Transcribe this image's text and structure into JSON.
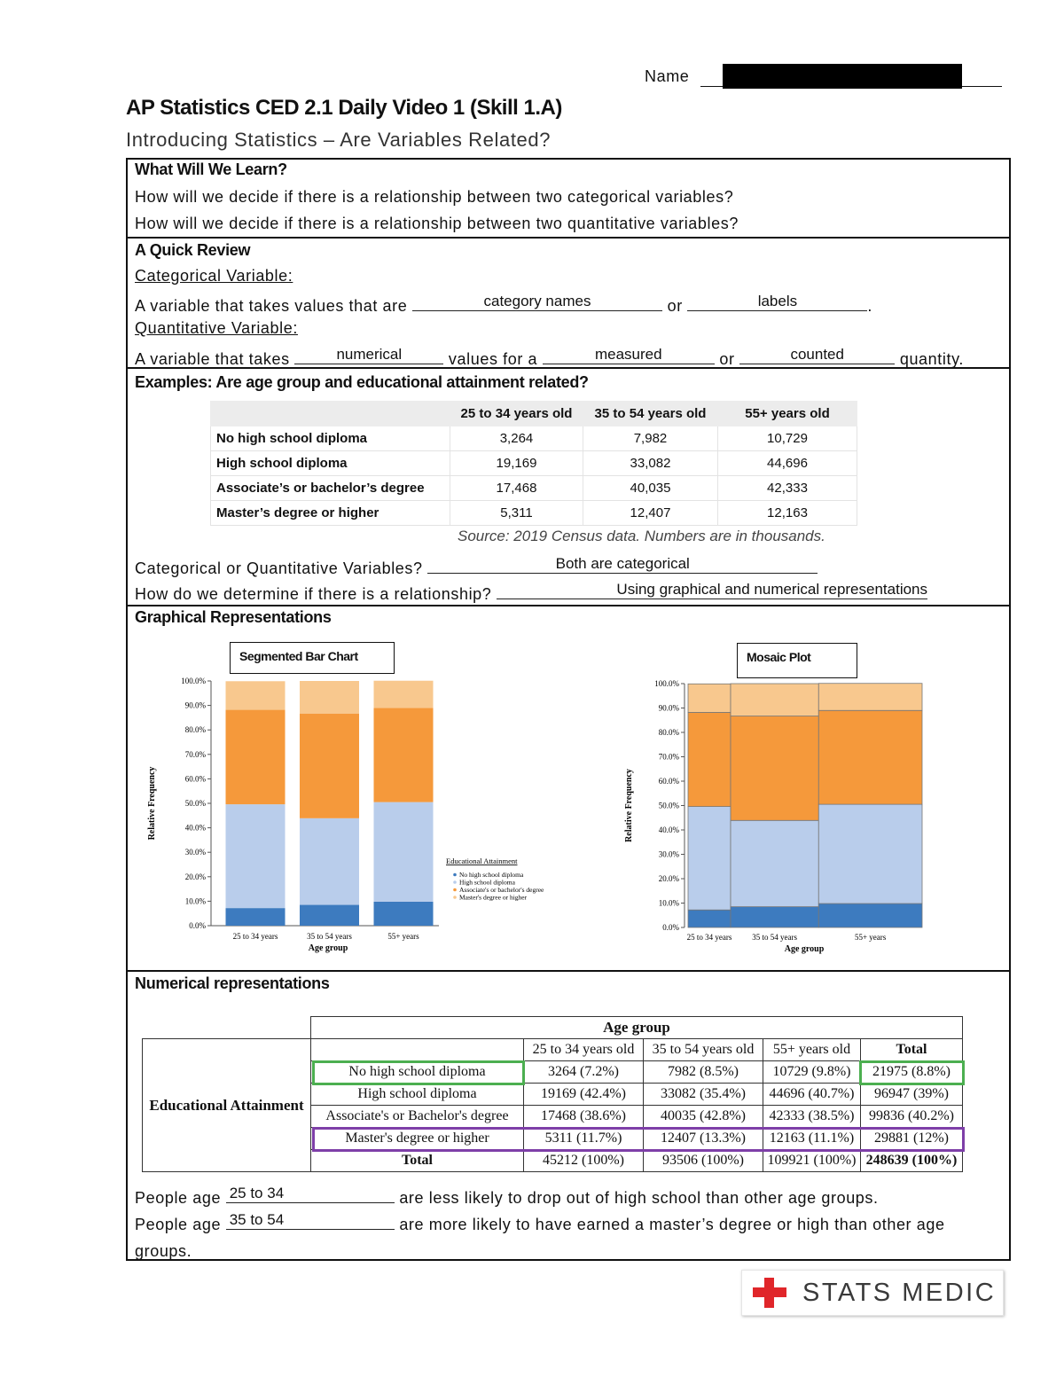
{
  "header": {
    "name_label": "Name",
    "title": "AP Statistics CED 2.1 Daily Video 1 (Skill 1.A)",
    "subtitle": "Introducing Statistics – Are Variables Related?"
  },
  "learn": {
    "heading": "What Will We Learn?",
    "questions": [
      "How will we decide if there is a relationship between two categorical variables?",
      "How will we decide if there is a relationship between two quantitative variables?"
    ]
  },
  "review": {
    "heading": "A Quick Review",
    "categorical": {
      "term": "Categorical Variable:",
      "parts": [
        "A variable that takes values that are",
        "or",
        "."
      ],
      "answers": [
        "category names",
        "labels"
      ]
    },
    "quantitative": {
      "term": "Quantitative Variable:",
      "parts": [
        "A variable that takes",
        "values for a",
        "or",
        "quantity."
      ],
      "answers": [
        "numerical",
        "measured",
        "counted"
      ]
    }
  },
  "examples": {
    "heading": "Examples: Are age group and educational attainment related?",
    "table": {
      "columns": [
        "25 to 34 years old",
        "35 to 54 years old",
        "55+ years old"
      ],
      "rows": [
        {
          "label": "No high school diploma",
          "cells": [
            "3,264",
            "7,982",
            "10,729"
          ]
        },
        {
          "label": "High school diploma",
          "cells": [
            "19,169",
            "33,082",
            "44,696"
          ]
        },
        {
          "label": "Associate’s or bachelor’s degree",
          "cells": [
            "17,468",
            "40,035",
            "42,333"
          ]
        },
        {
          "label": "Master’s degree or higher",
          "cells": [
            "5,311",
            "12,407",
            "12,163"
          ]
        }
      ]
    },
    "source": "Source: 2019 Census data. Numbers are in thousands.",
    "questions": [
      {
        "question": "Categorical or Quantitative Variables?",
        "answer": "Both are categorical"
      },
      {
        "question": "How do we determine if there is a relationship?",
        "answer": "Using graphical and numerical representations"
      }
    ]
  },
  "graphical": {
    "heading": "Graphical Representations",
    "charts": [
      {
        "type": "stacked_bar",
        "title": "Segmented Bar Chart",
        "x_label": "Age group",
        "y_label": "Relative Frequency",
        "categories": [
          "25 to 34 years",
          "35 to 54 years",
          "55+ years"
        ],
        "ylim": [
          0,
          100
        ],
        "yticks": [
          {
            "value": 0,
            "label": "0.0%"
          },
          {
            "value": 10,
            "label": "10.0%"
          },
          {
            "value": 20,
            "label": "20.0%"
          },
          {
            "value": 30,
            "label": "30.0%"
          },
          {
            "value": 40,
            "label": "40.0%"
          },
          {
            "value": 50,
            "label": "50.0%"
          },
          {
            "value": 60,
            "label": "60.0%"
          },
          {
            "value": 70,
            "label": "70.0%"
          },
          {
            "value": 80,
            "label": "80.0%"
          },
          {
            "value": 90,
            "label": "90.0%"
          },
          {
            "value": 100,
            "label": "100.0%"
          }
        ],
        "legend_title": "Educational Attainment",
        "series": [
          {
            "name": "No high school diploma",
            "color": "#3d7bbf",
            "values": [
              7.2,
              8.5,
              9.8
            ]
          },
          {
            "name": "High school diploma",
            "color": "#b9cdeb",
            "values": [
              42.4,
              35.4,
              40.7
            ]
          },
          {
            "name": "Associate's or bachelor's degree",
            "color": "#f5993b",
            "values": [
              38.6,
              42.8,
              38.5
            ]
          },
          {
            "name": "Master's degree or higher",
            "color": "#f8c88e",
            "values": [
              11.7,
              13.3,
              11.1
            ]
          }
        ]
      },
      {
        "type": "mosaic",
        "title": "Mosaic Plot",
        "x_label": "Age group",
        "y_label": "Relative Frequency",
        "categories": [
          "25 to 34 years",
          "35 to 54 years",
          "55+ years"
        ],
        "column_widths": [
          45212,
          93506,
          109921
        ],
        "ylim": [
          0,
          100
        ],
        "yticks": [
          {
            "value": 0,
            "label": "0.0%"
          },
          {
            "value": 10,
            "label": "10.0%"
          },
          {
            "value": 20,
            "label": "20.0%"
          },
          {
            "value": 30,
            "label": "30.0%"
          },
          {
            "value": 40,
            "label": "40.0%"
          },
          {
            "value": 50,
            "label": "50.0%"
          },
          {
            "value": 60,
            "label": "60.0%"
          },
          {
            "value": 70,
            "label": "70.0%"
          },
          {
            "value": 80,
            "label": "80.0%"
          },
          {
            "value": 90,
            "label": "90.0%"
          },
          {
            "value": 100,
            "label": "100.0%"
          }
        ],
        "series": [
          {
            "color": "#3d7bbf",
            "values": [
              7.2,
              8.5,
              9.8
            ]
          },
          {
            "color": "#b9cdeb",
            "values": [
              42.4,
              35.4,
              40.7
            ]
          },
          {
            "color": "#f5993b",
            "values": [
              38.6,
              42.8,
              38.5
            ]
          },
          {
            "color": "#f8c88e",
            "values": [
              11.7,
              13.3,
              11.1
            ]
          }
        ]
      }
    ]
  },
  "numerical": {
    "heading": "Numerical representations",
    "table": {
      "header": "Age group",
      "row_header": "Educational Attainment",
      "columns": [
        "25 to 34 years old",
        "35 to 54 years old",
        "55+ years old",
        "Total"
      ],
      "rows": [
        [
          "No high school diploma",
          "3264 (7.2%)",
          "7982 (8.5%)",
          "10729 (9.8%)",
          "21975 (8.8%)"
        ],
        [
          "High school diploma",
          "19169 (42.4%)",
          "33082 (35.4%)",
          "44696 (40.7%)",
          "96947 (39%)"
        ],
        [
          "Associate's or Bachelor's degree",
          "17468 (38.6%)",
          "40035 (42.8%)",
          "42333 (38.5%)",
          "99836 (40.2%)"
        ],
        [
          "Master's degree or higher",
          "5311 (11.7%)",
          "12407 (13.3%)",
          "12163 (11.1%)",
          "29881 (12%)"
        ]
      ],
      "total": [
        "Total",
        "45212 (100%)",
        "93506 (100%)",
        "109921 (100%)",
        "248639 (100%)"
      ]
    },
    "conclusions": [
      {
        "before": "People age",
        "answer": "25 to 34",
        "after": "are less likely to drop out of high school than other age groups."
      },
      {
        "before": "People age",
        "answer": "35 to 54",
        "after": "are more likely to have earned a master’s degree or high than other age groups."
      }
    ]
  },
  "footer": {
    "logo": "STATS MEDIC"
  }
}
